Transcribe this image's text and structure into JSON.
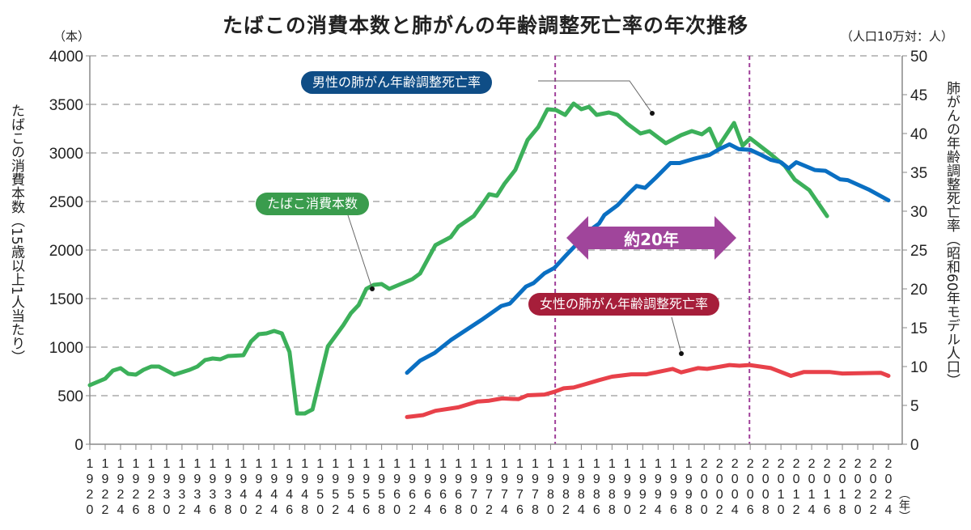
{
  "chart_data": {
    "type": "line",
    "title": "たばこの消費本数と肺がんの年齢調整死亡率の年次推移",
    "left_axis": {
      "unit": "（本）",
      "label": "たばこの消費本数（15歳以上1人当たり）",
      "range": [
        0,
        4000
      ],
      "ticks": [
        "0",
        "500",
        "1000",
        "1500",
        "2000",
        "2500",
        "3000",
        "3500",
        "4000"
      ]
    },
    "right_axis": {
      "unit": "（人口10万対：人）",
      "label": "肺がんの年齢調整死亡率（昭和60年モデル人口）",
      "range": [
        0,
        50
      ],
      "ticks": [
        "0",
        "5",
        "10",
        "15",
        "20",
        "25",
        "30",
        "35",
        "40",
        "45",
        "50"
      ]
    },
    "x_axis": {
      "unit": "（年）",
      "range": [
        1920,
        2024
      ],
      "ticks": [
        "1920",
        "1922",
        "1924",
        "1926",
        "1928",
        "1930",
        "1932",
        "1934",
        "1936",
        "1938",
        "1940",
        "1942",
        "1944",
        "1946",
        "1948",
        "1950",
        "1952",
        "1954",
        "1956",
        "1958",
        "1960",
        "1962",
        "1964",
        "1966",
        "1968",
        "1970",
        "1972",
        "1974",
        "1976",
        "1978",
        "1980",
        "1982",
        "1984",
        "1986",
        "1988",
        "1990",
        "1992",
        "1994",
        "1996",
        "1998",
        "2000",
        "2002",
        "2004",
        "2006",
        "2008",
        "2010",
        "2012",
        "2014",
        "2016",
        "2018",
        "2020",
        "2022",
        "2024"
      ]
    },
    "grid": "horizontal dashed",
    "series": [
      {
        "name": "たばこ消費本数",
        "axis": "left",
        "color": "#3cb05a",
        "points": [
          [
            1920,
            608
          ],
          [
            1922,
            675
          ],
          [
            1923,
            758
          ],
          [
            1924,
            783
          ],
          [
            1925,
            725
          ],
          [
            1926,
            717
          ],
          [
            1927,
            767
          ],
          [
            1928,
            800
          ],
          [
            1929,
            800
          ],
          [
            1930,
            758
          ],
          [
            1931,
            717
          ],
          [
            1933,
            767
          ],
          [
            1934,
            800
          ],
          [
            1935,
            867
          ],
          [
            1936,
            883
          ],
          [
            1937,
            875
          ],
          [
            1938,
            908
          ],
          [
            1940,
            917
          ],
          [
            1941,
            1058
          ],
          [
            1942,
            1133
          ],
          [
            1943,
            1142
          ],
          [
            1944,
            1167
          ],
          [
            1945,
            1142
          ],
          [
            1946,
            950
          ],
          [
            1947,
            317
          ],
          [
            1948,
            317
          ],
          [
            1949,
            358
          ],
          [
            1950,
            683
          ],
          [
            1951,
            1008
          ],
          [
            1953,
            1225
          ],
          [
            1954,
            1350
          ],
          [
            1955,
            1433
          ],
          [
            1956,
            1600
          ],
          [
            1957,
            1642
          ],
          [
            1958,
            1650
          ],
          [
            1959,
            1600
          ],
          [
            1960,
            1633
          ],
          [
            1962,
            1700
          ],
          [
            1963,
            1758
          ],
          [
            1965,
            2050
          ],
          [
            1967,
            2133
          ],
          [
            1968,
            2242
          ],
          [
            1970,
            2350
          ],
          [
            1971.5,
            2517
          ],
          [
            1972,
            2575
          ],
          [
            1973,
            2558
          ],
          [
            1974,
            2683
          ],
          [
            1975.4,
            2825
          ],
          [
            1977,
            3133
          ],
          [
            1978.4,
            3267
          ],
          [
            1979.6,
            3450
          ],
          [
            1980.7,
            3442
          ],
          [
            1981.9,
            3392
          ],
          [
            1983,
            3508
          ],
          [
            1984,
            3450
          ],
          [
            1985,
            3475
          ],
          [
            1986,
            3392
          ],
          [
            1987.6,
            3417
          ],
          [
            1988.7,
            3392
          ],
          [
            1990,
            3300
          ],
          [
            1991.7,
            3200
          ],
          [
            1992.9,
            3225
          ],
          [
            1995,
            3100
          ],
          [
            1997,
            3183
          ],
          [
            1998.4,
            3225
          ],
          [
            1999.7,
            3192
          ],
          [
            2000.7,
            3250
          ],
          [
            2001.8,
            3058
          ],
          [
            2003.9,
            3308
          ],
          [
            2005,
            3075
          ],
          [
            2006,
            3150
          ],
          [
            2008.6,
            2992
          ],
          [
            2010.5,
            2867
          ],
          [
            2011.8,
            2725
          ],
          [
            2013.7,
            2617
          ],
          [
            2016,
            2350
          ]
        ]
      },
      {
        "name": "男性の肺がん年齢調整死亡率",
        "axis": "right",
        "color": "#0a6fc2",
        "points": [
          [
            1961.3,
            9.2
          ],
          [
            1963,
            10.75
          ],
          [
            1964.9,
            11.75
          ],
          [
            1967,
            13.4
          ],
          [
            1969,
            14.7
          ],
          [
            1971,
            16
          ],
          [
            1973.6,
            17.8
          ],
          [
            1974.7,
            18.1
          ],
          [
            1976.8,
            20.3
          ],
          [
            1977.8,
            20.75
          ],
          [
            1979.2,
            22
          ],
          [
            1980.5,
            22.7
          ],
          [
            1982,
            24.3
          ],
          [
            1983.4,
            25.75
          ],
          [
            1984.9,
            27.4
          ],
          [
            1986.3,
            28.4
          ],
          [
            1987,
            29.5
          ],
          [
            1988.7,
            30.75
          ],
          [
            1990.3,
            32.4
          ],
          [
            1991.2,
            33.25
          ],
          [
            1992.3,
            33
          ],
          [
            1993.7,
            34.3
          ],
          [
            1995.6,
            36.2
          ],
          [
            1996.8,
            36.2
          ],
          [
            1998.7,
            36.75
          ],
          [
            2000.7,
            37.25
          ],
          [
            2002,
            38
          ],
          [
            2003.3,
            38.6
          ],
          [
            2004.5,
            38
          ],
          [
            2006,
            37.9
          ],
          [
            2007.4,
            37.25
          ],
          [
            2008.7,
            36.6
          ],
          [
            2010,
            36.3
          ],
          [
            2011,
            35.5
          ],
          [
            2012,
            36.3
          ],
          [
            2014.4,
            35.3
          ],
          [
            2015.8,
            35.2
          ],
          [
            2017.7,
            34.1
          ],
          [
            2018.7,
            34
          ],
          [
            2021.4,
            32.8
          ],
          [
            2024,
            31.4
          ]
        ]
      },
      {
        "name": "女性の肺がん年齢調整死亡率",
        "axis": "right",
        "color": "#e8414a",
        "points": [
          [
            1961.3,
            3.5
          ],
          [
            1963.4,
            3.75
          ],
          [
            1965,
            4.3
          ],
          [
            1968,
            4.75
          ],
          [
            1970.5,
            5.5
          ],
          [
            1972,
            5.6
          ],
          [
            1973.7,
            5.9
          ],
          [
            1975.8,
            5.8
          ],
          [
            1977,
            6.3
          ],
          [
            1979.2,
            6.4
          ],
          [
            1980.5,
            6.75
          ],
          [
            1981.7,
            7.2
          ],
          [
            1983,
            7.3
          ],
          [
            1984.4,
            7.7
          ],
          [
            1986.3,
            8.25
          ],
          [
            1988,
            8.7
          ],
          [
            1990.5,
            9
          ],
          [
            1992.5,
            9
          ],
          [
            1995.9,
            9.7
          ],
          [
            1997,
            9.25
          ],
          [
            1999.2,
            9.8
          ],
          [
            2000.4,
            9.7
          ],
          [
            2003.3,
            10.2
          ],
          [
            2004.6,
            10.1
          ],
          [
            2005.9,
            10.2
          ],
          [
            2008.7,
            9.8
          ],
          [
            2011.3,
            8.8
          ],
          [
            2013,
            9.3
          ],
          [
            2016.3,
            9.3
          ],
          [
            2018,
            9.1
          ],
          [
            2023,
            9.2
          ],
          [
            2024,
            8.8
          ]
        ]
      }
    ],
    "annotations": {
      "markers": [
        1980.6,
        2005.9
      ],
      "lag_label": "約20年",
      "lag_color": "#a0409a"
    }
  }
}
